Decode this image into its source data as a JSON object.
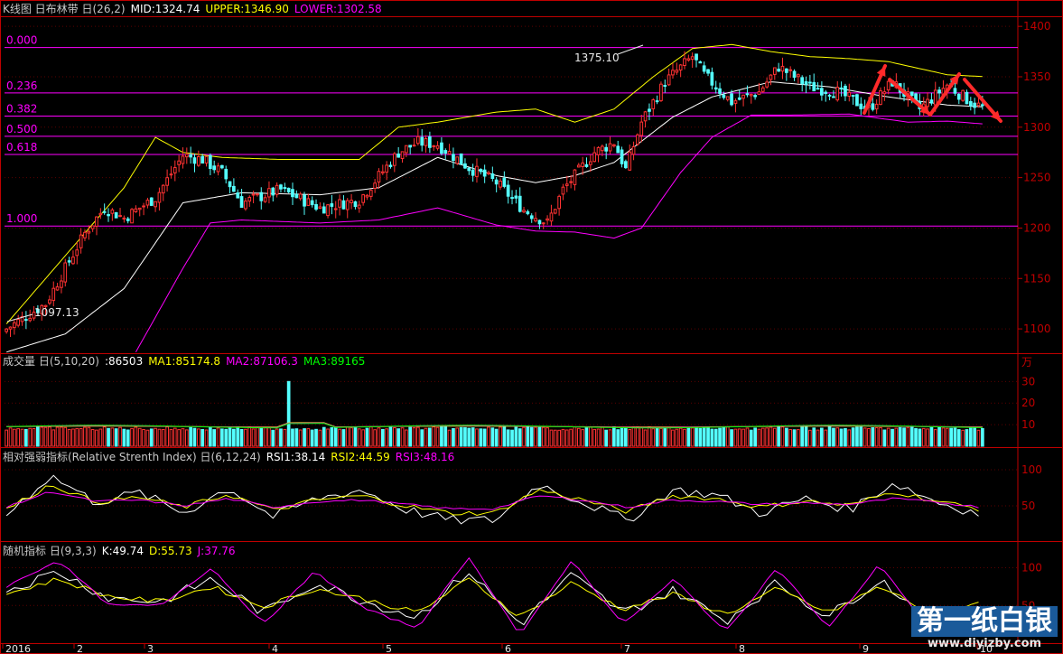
{
  "colors": {
    "frame": "#c00000",
    "up": "#ff3232",
    "down": "#54ffff",
    "mid": "#ffffff",
    "upper": "#ffff00",
    "lower": "#ff00ff",
    "fib": "#ff00ff",
    "axis_text": "#c00000",
    "ma1": "#ffff00",
    "ma2": "#ff00ff",
    "ma3": "#00ff00",
    "arrow": "#ff2a2a"
  },
  "header_main": {
    "title": "K线图 日布林带 日(26,2)",
    "mid": "MID:1324.74",
    "upper": "UPPER:1346.90",
    "lower": "LOWER:1302.58"
  },
  "header_vol": {
    "title": "成交量 日(5,10,20)",
    "vol": ":86503",
    "ma1": "MA1:85174.8",
    "ma2": "MA2:87106.3",
    "ma3": "MA3:89165"
  },
  "header_rsi": {
    "title": "相对强弱指标(Relative Strenth Index) 日(6,12,24)",
    "rsi1": "RSI1:38.14",
    "rsi2": "RSI2:44.59",
    "rsi3": "RSI3:48.16"
  },
  "header_kdj": {
    "title": "随机指标 日(9,3,3)",
    "k": "K:49.74",
    "d": "D:55.73",
    "j": "J:37.76"
  },
  "watermark": {
    "title": "第一纸白银",
    "url": "www.diyizby.com"
  },
  "chart_data": [
    {
      "type": "candlestick",
      "title": "K线图",
      "ylim": [
        1075,
        1410
      ],
      "y_ticks": [
        1100,
        1150,
        1200,
        1250,
        1300,
        1350,
        1400
      ],
      "x_ticks": [
        "2016",
        "2",
        "3",
        "4",
        "5",
        "6",
        "7",
        "8",
        "9",
        "10"
      ],
      "annotations": {
        "high": "1375.10",
        "low": "1097.13"
      },
      "fibonacci": [
        {
          "label": "0.000",
          "price": 1379
        },
        {
          "label": "0.236",
          "price": 1334
        },
        {
          "label": "0.382",
          "price": 1311
        },
        {
          "label": "0.500",
          "price": 1291
        },
        {
          "label": "0.618",
          "price": 1273
        },
        {
          "label": "1.000",
          "price": 1202
        }
      ],
      "close_path": [
        [
          0,
          1100
        ],
        [
          10,
          1125
        ],
        [
          20,
          1195
        ],
        [
          25,
          1220
        ],
        [
          30,
          1210
        ],
        [
          38,
          1230
        ],
        [
          45,
          1272
        ],
        [
          50,
          1268
        ],
        [
          55,
          1255
        ],
        [
          60,
          1225
        ],
        [
          70,
          1238
        ],
        [
          80,
          1220
        ],
        [
          90,
          1228
        ],
        [
          100,
          1275
        ],
        [
          105,
          1285
        ],
        [
          110,
          1283
        ],
        [
          118,
          1260
        ],
        [
          125,
          1245
        ],
        [
          132,
          1218
        ],
        [
          138,
          1205
        ],
        [
          142,
          1238
        ],
        [
          150,
          1275
        ],
        [
          155,
          1285
        ],
        [
          158,
          1258
        ],
        [
          162,
          1305
        ],
        [
          168,
          1345
        ],
        [
          175,
          1370
        ],
        [
          178,
          1352
        ],
        [
          185,
          1325
        ],
        [
          192,
          1335
        ],
        [
          197,
          1360
        ],
        [
          205,
          1340
        ],
        [
          212,
          1335
        ],
        [
          220,
          1318
        ],
        [
          226,
          1345
        ],
        [
          233,
          1318
        ],
        [
          240,
          1342
        ],
        [
          246,
          1325
        ],
        [
          250,
          1318
        ]
      ],
      "series_bollinger": {
        "upper": [
          [
            0,
            1105
          ],
          [
            30,
            1240
          ],
          [
            38,
            1290
          ],
          [
            45,
            1275
          ],
          [
            55,
            1270
          ],
          [
            70,
            1268
          ],
          [
            90,
            1268
          ],
          [
            100,
            1300
          ],
          [
            110,
            1305
          ],
          [
            125,
            1315
          ],
          [
            135,
            1318
          ],
          [
            145,
            1305
          ],
          [
            155,
            1318
          ],
          [
            165,
            1350
          ],
          [
            175,
            1378
          ],
          [
            185,
            1382
          ],
          [
            195,
            1375
          ],
          [
            205,
            1370
          ],
          [
            215,
            1368
          ],
          [
            225,
            1365
          ],
          [
            240,
            1352
          ],
          [
            250,
            1350
          ]
        ],
        "mid": [
          [
            0,
            1077
          ],
          [
            15,
            1095
          ],
          [
            30,
            1140
          ],
          [
            45,
            1225
          ],
          [
            60,
            1235
          ],
          [
            80,
            1233
          ],
          [
            95,
            1240
          ],
          [
            110,
            1270
          ],
          [
            125,
            1252
          ],
          [
            135,
            1245
          ],
          [
            145,
            1252
          ],
          [
            155,
            1265
          ],
          [
            170,
            1310
          ],
          [
            180,
            1330
          ],
          [
            195,
            1345
          ],
          [
            210,
            1340
          ],
          [
            225,
            1330
          ],
          [
            240,
            1322
          ],
          [
            250,
            1320
          ]
        ],
        "lower": [
          [
            33,
            1077
          ],
          [
            45,
            1160
          ],
          [
            52,
            1205
          ],
          [
            60,
            1208
          ],
          [
            80,
            1205
          ],
          [
            95,
            1208
          ],
          [
            110,
            1220
          ],
          [
            125,
            1203
          ],
          [
            135,
            1197
          ],
          [
            145,
            1196
          ],
          [
            155,
            1190
          ],
          [
            162,
            1200
          ],
          [
            172,
            1255
          ],
          [
            180,
            1290
          ],
          [
            190,
            1312
          ],
          [
            200,
            1312
          ],
          [
            215,
            1313
          ],
          [
            230,
            1305
          ],
          [
            240,
            1306
          ],
          [
            250,
            1303
          ]
        ]
      }
    },
    {
      "type": "bar",
      "title": "成交量",
      "unit": "万",
      "ylim": [
        0,
        36
      ],
      "y_ticks": [
        10,
        20,
        30
      ],
      "typical_value": 9,
      "spike": {
        "index": 72,
        "value": 30
      }
    },
    {
      "type": "line",
      "title": "RSI",
      "ylim": [
        0,
        110
      ],
      "y_ticks": [
        50,
        100
      ],
      "series": [
        {
          "name": "RSI1",
          "values": [
            38,
            92,
            55,
            68,
            40,
            75,
            35,
            60,
            72,
            45,
            30,
            30,
            80,
            55,
            30,
            72,
            65,
            40,
            60,
            45,
            82,
            55,
            38
          ]
        },
        {
          "name": "RSI2",
          "values": [
            45,
            80,
            55,
            62,
            48,
            66,
            44,
            58,
            64,
            50,
            40,
            40,
            72,
            58,
            42,
            64,
            60,
            48,
            57,
            50,
            70,
            56,
            45
          ]
        },
        {
          "name": "RSI3",
          "values": [
            48,
            70,
            56,
            58,
            50,
            60,
            48,
            56,
            58,
            52,
            46,
            46,
            64,
            58,
            48,
            58,
            56,
            52,
            54,
            52,
            60,
            55,
            48
          ]
        }
      ]
    },
    {
      "type": "line",
      "title": "KDJ",
      "ylim": [
        0,
        115
      ],
      "y_ticks": [
        50,
        100
      ],
      "series": [
        {
          "name": "K",
          "values": [
            70,
            95,
            60,
            55,
            85,
            40,
            80,
            55,
            35,
            95,
            25,
            90,
            40,
            70,
            30,
            80,
            35,
            85,
            30,
            50
          ]
        },
        {
          "name": "D",
          "values": [
            65,
            85,
            62,
            55,
            75,
            48,
            72,
            58,
            40,
            85,
            35,
            80,
            45,
            65,
            38,
            72,
            40,
            75,
            40,
            55
          ]
        },
        {
          "name": "J",
          "values": [
            75,
            110,
            50,
            50,
            100,
            25,
            95,
            45,
            20,
            115,
            10,
            110,
            25,
            85,
            15,
            100,
            20,
            105,
            15,
            37
          ]
        }
      ]
    }
  ]
}
